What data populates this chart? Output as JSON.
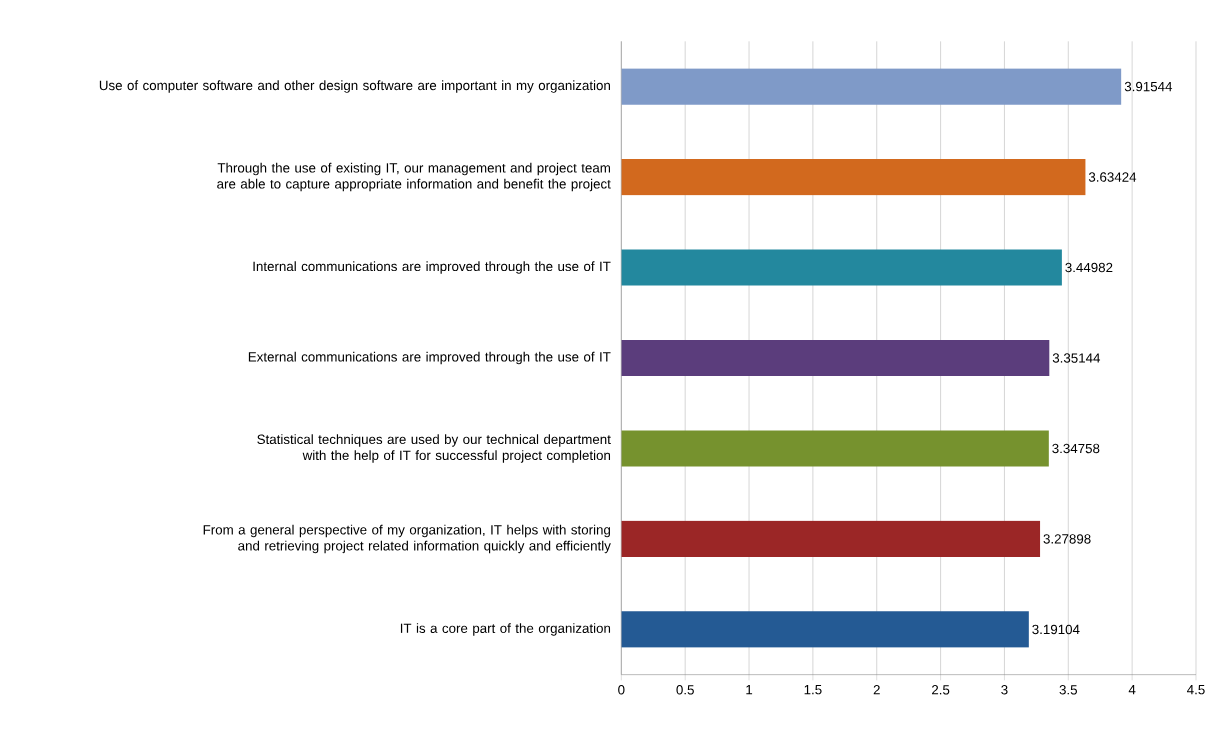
{
  "chart_data": {
    "type": "bar",
    "orientation": "horizontal",
    "categories": [
      "Use of computer software and other design software are important in my  organization",
      "Through the use of existing IT, our management and project team are able to capture appropriate information and benefit the project",
      "Internal communications are improved through the use of IT",
      "External communications are improved through the use of IT",
      "Statistical techniques are used  by our technical department with the help of IT for successful project completion",
      "From a general perspective of my organization, IT helps with storing and retrieving project related information quickly and efficiently",
      "IT is a core part of the organization"
    ],
    "values": [
      3.91544,
      3.63424,
      3.44982,
      3.35144,
      3.34758,
      3.27898,
      3.19104
    ],
    "colors": [
      "#7f9ac8",
      "#d2691e",
      "#23889e",
      "#5b3d7c",
      "#76922e",
      "#9b2626",
      "#245a94"
    ],
    "xlim": [
      0,
      4.5
    ],
    "xticks": [
      0,
      0.5,
      1,
      1.5,
      2,
      2.5,
      3,
      3.5,
      4,
      4.5
    ],
    "grid": "x",
    "data_labels": true
  }
}
